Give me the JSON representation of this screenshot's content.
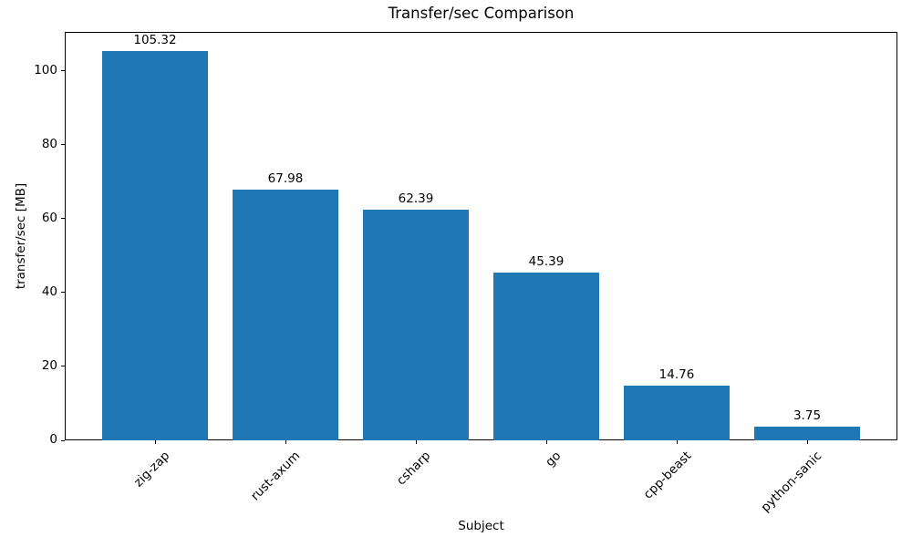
{
  "chart_data": {
    "type": "bar",
    "title": "Transfer/sec Comparison",
    "xlabel": "Subject",
    "ylabel": "transfer/sec [MB]",
    "categories": [
      "zig-zap",
      "rust-axum",
      "csharp",
      "go",
      "cpp-beast",
      "python-sanic"
    ],
    "values": [
      105.32,
      67.98,
      62.39,
      45.39,
      14.76,
      3.75
    ],
    "value_labels": [
      "105.32",
      "67.98",
      "62.39",
      "45.39",
      "14.76",
      "3.75"
    ],
    "yticks": [
      0,
      20,
      40,
      60,
      80,
      100
    ],
    "ylim": [
      0,
      110.6
    ],
    "bar_color": "#1f77b4",
    "text_color": "#000000",
    "grid": false,
    "legend_position": "none"
  }
}
